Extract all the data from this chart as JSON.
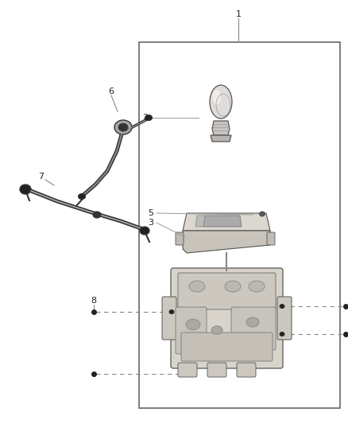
{
  "background_color": "#ffffff",
  "figsize": [
    4.38,
    5.33
  ],
  "dpi": 100,
  "line_color": "#555555",
  "dark_color": "#222222",
  "border_color": "#666666",
  "part_fill": "#e8e4dc",
  "part_stroke": "#555555"
}
